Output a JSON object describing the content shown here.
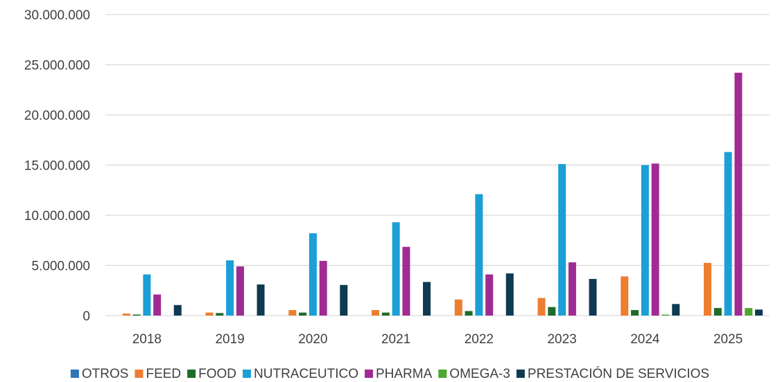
{
  "chart_data": {
    "type": "bar",
    "title": "",
    "xlabel": "",
    "ylabel": "",
    "ylim": [
      0,
      30000000
    ],
    "y_ticks": [
      0,
      5000000,
      10000000,
      15000000,
      20000000,
      25000000,
      30000000
    ],
    "y_tick_labels": [
      "0",
      "5.000.000",
      "10.000.000",
      "15.000.000",
      "20.000.000",
      "25.000.000",
      "30.000.000"
    ],
    "grid": true,
    "legend_position": "bottom",
    "categories": [
      "2018",
      "2019",
      "2020",
      "2021",
      "2022",
      "2023",
      "2024",
      "2025"
    ],
    "series": [
      {
        "name": "OTROS",
        "color": "#2e75b6",
        "values": [
          0,
          0,
          0,
          0,
          0,
          0,
          0,
          0
        ]
      },
      {
        "name": "FEED",
        "color": "#ed7d31",
        "values": [
          200000,
          300000,
          550000,
          550000,
          1600000,
          1750000,
          3900000,
          5250000
        ]
      },
      {
        "name": "FOOD",
        "color": "#1e6b2a",
        "values": [
          100000,
          250000,
          300000,
          300000,
          450000,
          850000,
          550000,
          750000
        ]
      },
      {
        "name": "NUTRACEUTICO",
        "color": "#1b9fd6",
        "values": [
          4100000,
          5500000,
          8200000,
          9300000,
          12100000,
          15100000,
          15000000,
          16300000
        ]
      },
      {
        "name": "PHARMA",
        "color": "#a02b93",
        "values": [
          2100000,
          4900000,
          5450000,
          6850000,
          4100000,
          5300000,
          15150000,
          24200000
        ]
      },
      {
        "name": "OMEGA-3",
        "color": "#4ea72e",
        "values": [
          0,
          0,
          0,
          0,
          0,
          0,
          100000,
          750000
        ]
      },
      {
        "name": "PRESTACIÓN DE SERVICIOS",
        "color": "#0e3a52",
        "values": [
          1050000,
          3100000,
          3050000,
          3350000,
          4200000,
          3650000,
          1150000,
          600000
        ]
      }
    ]
  }
}
